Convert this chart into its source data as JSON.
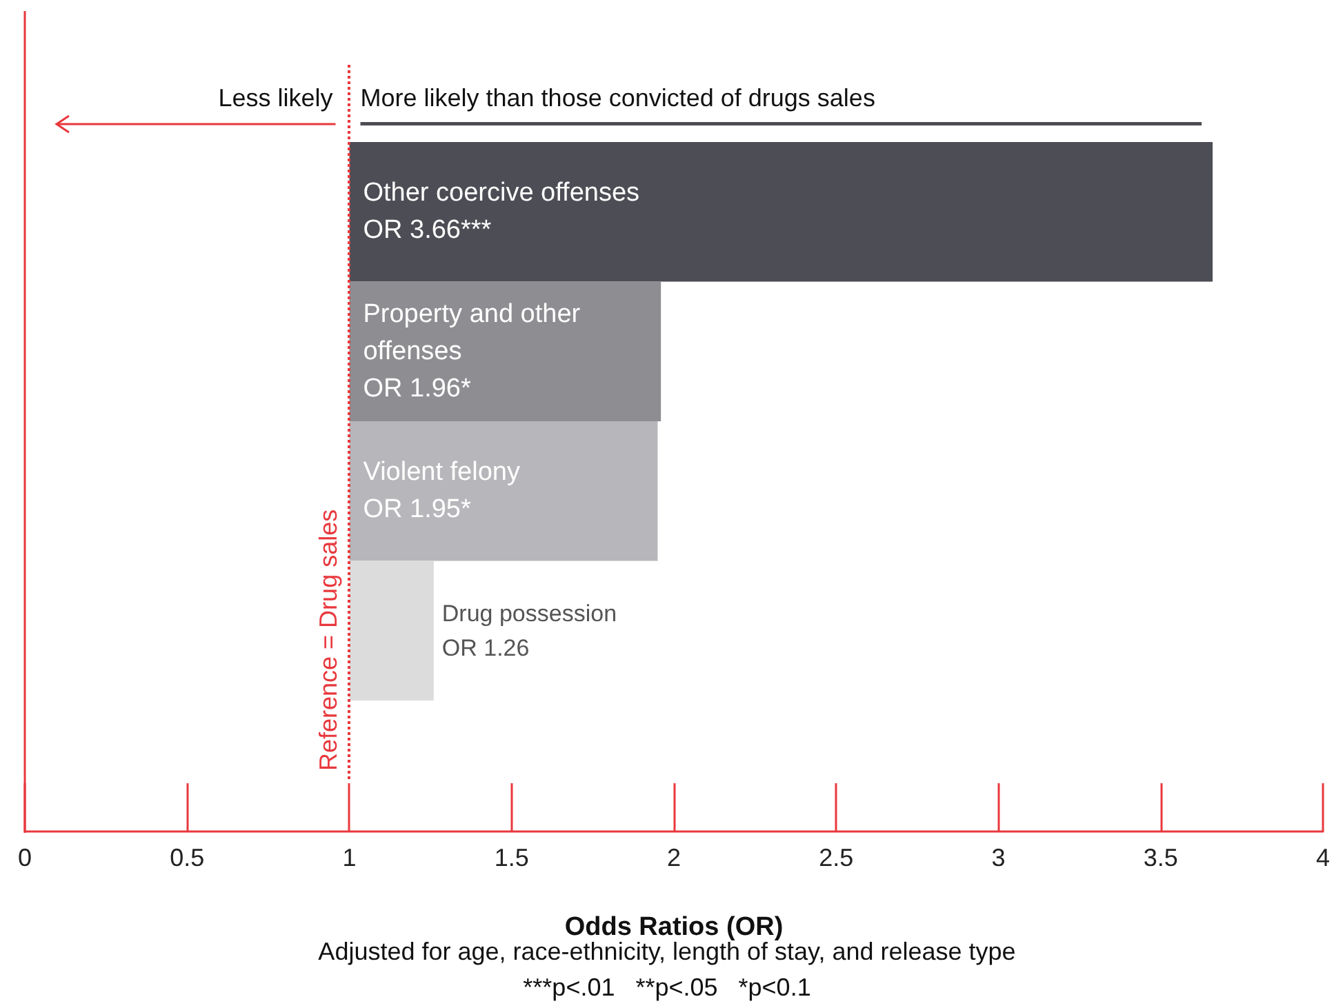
{
  "chart_data": {
    "type": "bar",
    "orientation": "horizontal",
    "categories": [
      "Other coercive offenses",
      "Property and other offenses",
      "Violent felony",
      "Drug possession"
    ],
    "base": [
      1,
      1,
      1,
      1
    ],
    "values": [
      2.66,
      0.96,
      0.95,
      0.26
    ],
    "value_labels": [
      "OR 3.66***",
      "OR 1.96*",
      "OR 1.95*",
      "OR 1.26"
    ],
    "colors": [
      "#4d4d55",
      "#8e8d91",
      "#b7b6ba",
      "#dcdcdc"
    ],
    "xlim": [
      0,
      4
    ],
    "xticks": [
      0,
      0.5,
      1,
      1.5,
      2,
      2.5,
      3,
      3.5,
      4
    ],
    "xlabel": "Odds Ratios (OR)",
    "tick_labels": "x",
    "grid": false,
    "ref_lines": [
      {
        "axis": "x",
        "value": 1,
        "label": "Reference = Drug sales",
        "color": "#e8383d",
        "line_style": "dotted"
      }
    ],
    "annotations": [
      "Less likely",
      "More likely than those convicted of drugs sales",
      "Adjusted for age, race-ethnicity, length of stay, and release type",
      "***p<.01   **p<.05   *p<0.1"
    ]
  }
}
